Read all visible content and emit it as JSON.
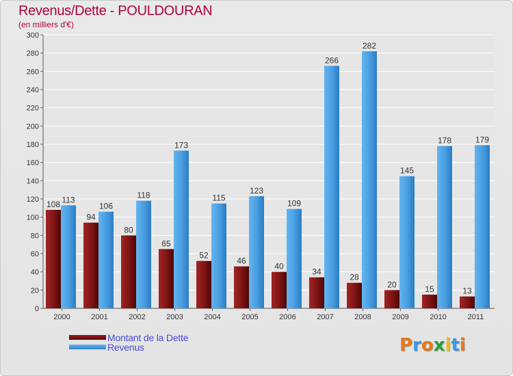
{
  "chart_data": {
    "type": "bar",
    "title": "Revenus/Dette - POULDOURAN",
    "subtitle": "(en milliers d'€)",
    "xlabel": "",
    "ylabel": "",
    "ylim": [
      0,
      300
    ],
    "ytick_step": 20,
    "grid": true,
    "legend_position": "bottom-left",
    "categories": [
      "2000",
      "2001",
      "2002",
      "2003",
      "2004",
      "2005",
      "2006",
      "2007",
      "2008",
      "2009",
      "2010",
      "2011"
    ],
    "series": [
      {
        "name": "Montant de la Dette",
        "color": "#8b1a1a",
        "values": [
          108,
          94,
          80,
          65,
          52,
          46,
          40,
          34,
          28,
          20,
          15,
          13
        ]
      },
      {
        "name": "Revenus",
        "color": "#3d97e0",
        "values": [
          113,
          106,
          118,
          173,
          115,
          123,
          109,
          266,
          282,
          145,
          178,
          179
        ]
      }
    ]
  },
  "brand": {
    "logo_text": "Proxiti",
    "logo_colors": [
      "#e8781c",
      "#3d97e0",
      "#e8781c",
      "#2e9e3a",
      "#e8c01c",
      "#3d97e0",
      "#e8781c"
    ]
  }
}
